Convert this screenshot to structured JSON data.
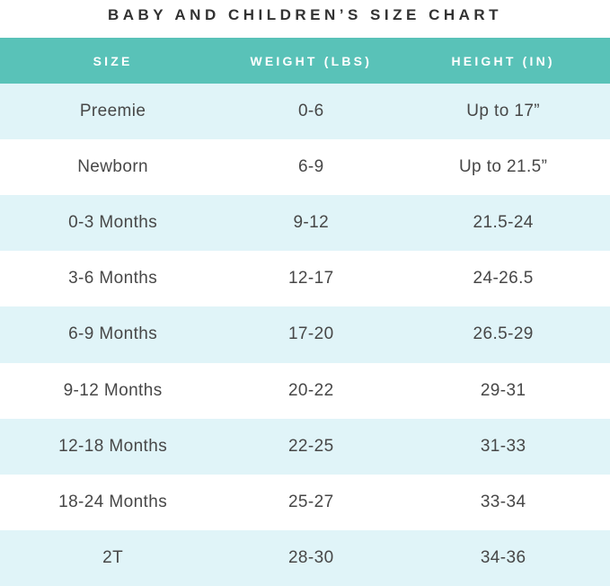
{
  "title": "BABY AND CHILDREN’S SIZE CHART",
  "colors": {
    "header_bg": "#59C2B8",
    "row_alt_bg": "#E0F4F8",
    "row_bg": "#FFFFFF",
    "header_text": "#FFFFFF",
    "cell_text": "#474747",
    "title_text": "#323232"
  },
  "table": {
    "columns": [
      "SIZE",
      "WEIGHT (LBS)",
      "HEIGHT (IN)"
    ],
    "rows": [
      {
        "size": "Preemie",
        "weight": "0-6",
        "height": "Up to 17”"
      },
      {
        "size": "Newborn",
        "weight": "6-9",
        "height": "Up to 21.5”"
      },
      {
        "size": "0-3 Months",
        "weight": "9-12",
        "height": "21.5-24"
      },
      {
        "size": "3-6 Months",
        "weight": "12-17",
        "height": "24-26.5"
      },
      {
        "size": "6-9 Months",
        "weight": "17-20",
        "height": "26.5-29"
      },
      {
        "size": "9-12 Months",
        "weight": "20-22",
        "height": "29-31"
      },
      {
        "size": "12-18 Months",
        "weight": "22-25",
        "height": "31-33"
      },
      {
        "size": "18-24 Months",
        "weight": "25-27",
        "height": "33-34"
      },
      {
        "size": "2T",
        "weight": "28-30",
        "height": "34-36"
      }
    ]
  },
  "chart_data": {
    "type": "table",
    "title": "BABY AND CHILDREN’S SIZE CHART",
    "columns": [
      "SIZE",
      "WEIGHT (LBS)",
      "HEIGHT (IN)"
    ],
    "rows": [
      [
        "Preemie",
        "0-6",
        "Up to 17”"
      ],
      [
        "Newborn",
        "6-9",
        "Up to 21.5”"
      ],
      [
        "0-3 Months",
        "9-12",
        "21.5-24"
      ],
      [
        "3-6 Months",
        "12-17",
        "24-26.5"
      ],
      [
        "6-9 Months",
        "17-20",
        "26.5-29"
      ],
      [
        "9-12 Months",
        "20-22",
        "29-31"
      ],
      [
        "12-18 Months",
        "22-25",
        "31-33"
      ],
      [
        "18-24 Months",
        "25-27",
        "33-34"
      ],
      [
        "2T",
        "28-30",
        "34-36"
      ]
    ],
    "layout_hints": {
      "header_background": "#59C2B8",
      "zebra_striping": "odd rows light cyan #E0F4F8, even rows white",
      "text_alignment": "center"
    }
  }
}
